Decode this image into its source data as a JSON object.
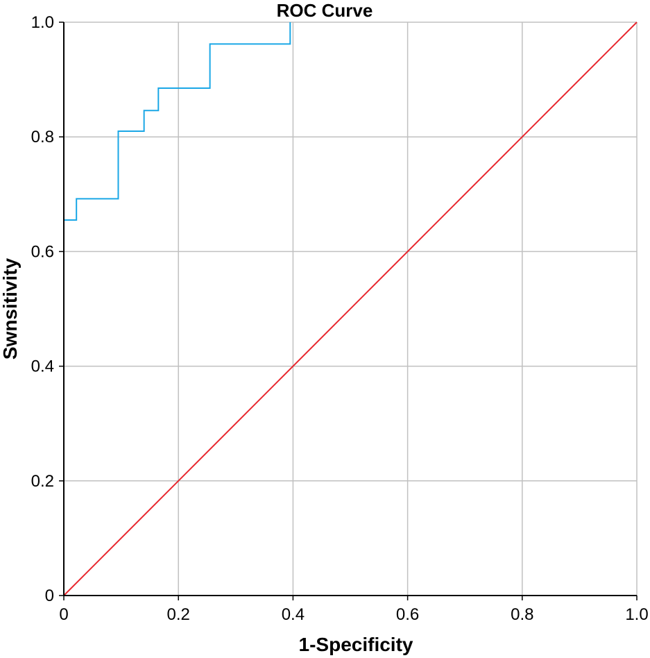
{
  "chart_data": {
    "type": "line",
    "title": "ROC Curve",
    "xlabel": "1-Specificity",
    "ylabel": "Swnsitivity",
    "xlim": [
      0,
      1
    ],
    "ylim": [
      0,
      1
    ],
    "grid": true,
    "x_ticks": [
      0,
      0.2,
      0.4,
      0.6,
      0.8,
      1.0
    ],
    "y_ticks": [
      0,
      0.2,
      0.4,
      0.6,
      0.8,
      1.0
    ],
    "x_tick_labels": [
      "0",
      "0.2",
      "0.4",
      "0.6",
      "0.8",
      "1.0"
    ],
    "y_tick_labels": [
      "0",
      "0.2",
      "0.4",
      "0.6",
      "0.8",
      "1.0"
    ],
    "series": [
      {
        "color": "#1aa7e6",
        "step": true,
        "x": [
          0,
          0.022,
          0.022,
          0.095,
          0.095,
          0.14,
          0.14,
          0.165,
          0.165,
          0.255,
          0.255,
          0.395,
          0.395
        ],
        "y": [
          0.655,
          0.655,
          0.692,
          0.692,
          0.81,
          0.81,
          0.846,
          0.846,
          0.885,
          0.885,
          0.962,
          0.962,
          1.0
        ]
      },
      {
        "color": "#e8262d",
        "x": [
          0,
          1
        ],
        "y": [
          0,
          1
        ]
      }
    ],
    "grid_color": "#c0c0c0",
    "axis_color": "#000000"
  }
}
